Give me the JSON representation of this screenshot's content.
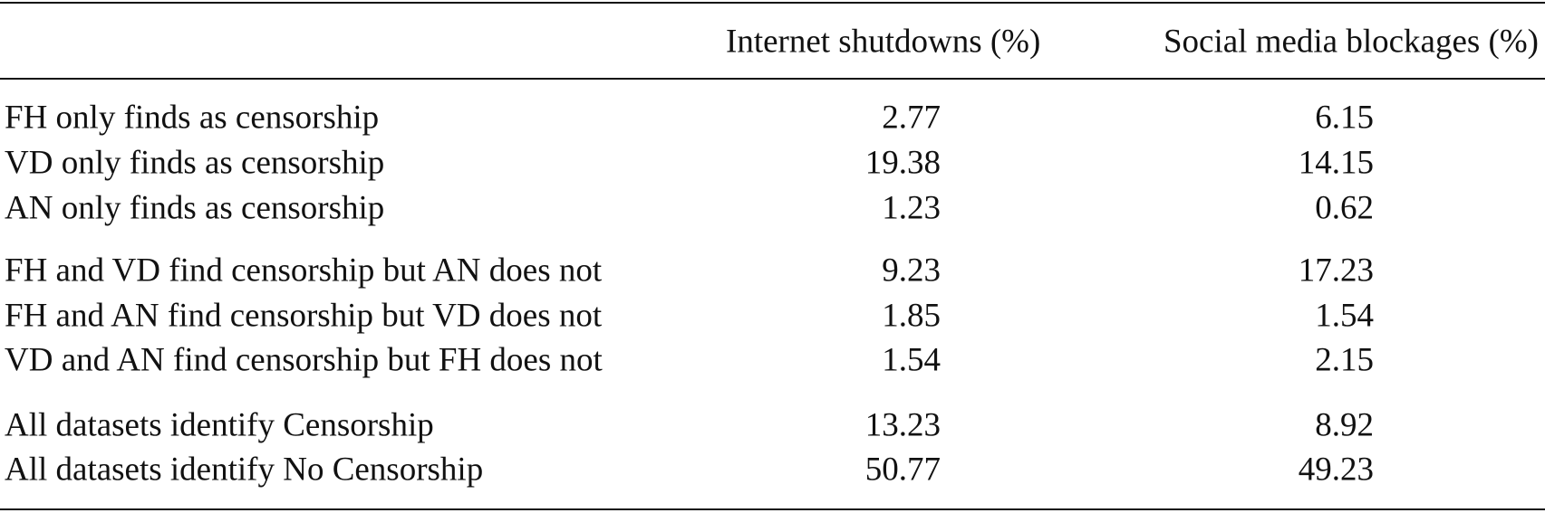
{
  "table": {
    "columns": [
      "Internet shutdowns (%)",
      "Social media blockages (%)"
    ],
    "rows": [
      {
        "label": "FH only finds as censorship",
        "values": [
          2.77,
          6.15
        ]
      },
      {
        "label": "VD only finds as censorship",
        "values": [
          19.38,
          14.15
        ]
      },
      {
        "label": "AN only finds as censorship",
        "values": [
          1.23,
          0.62
        ]
      },
      {
        "label": "FH and VD find censorship but AN does not",
        "values": [
          9.23,
          17.23
        ]
      },
      {
        "label": "FH and AN find censorship but VD does not",
        "values": [
          1.85,
          1.54
        ]
      },
      {
        "label": "VD and AN find censorship but FH does not",
        "values": [
          1.54,
          2.15
        ]
      },
      {
        "label": "All datasets identify Censorship",
        "values": [
          13.23,
          8.92
        ]
      },
      {
        "label": "All datasets identify No Censorship",
        "values": [
          50.77,
          49.23
        ]
      }
    ]
  }
}
